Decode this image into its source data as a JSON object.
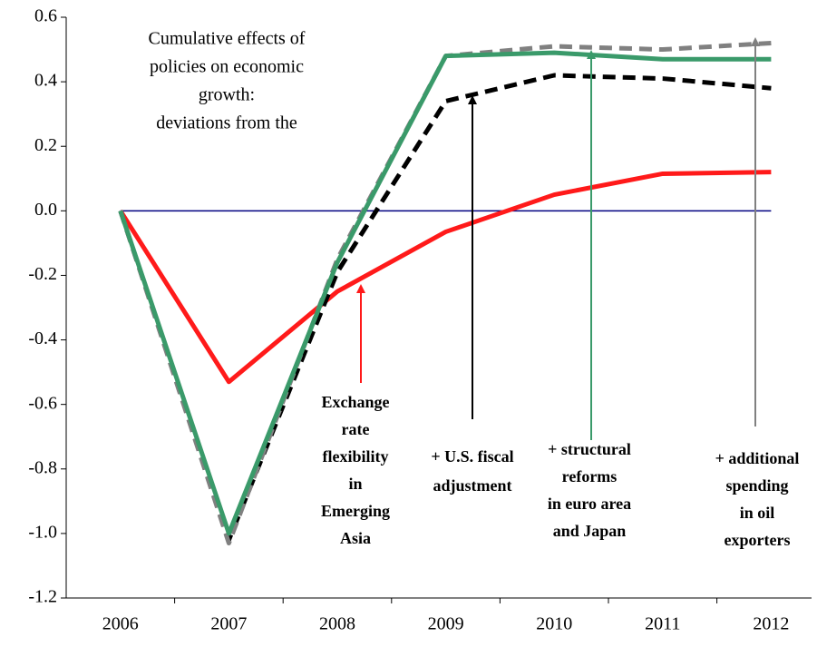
{
  "chart_data": {
    "type": "line",
    "title_lines": [
      "Cumulative effects of",
      "policies on economic",
      "growth:",
      "deviations from the"
    ],
    "categories": [
      "2006",
      "2007",
      "2008",
      "2009",
      "2010",
      "2011",
      "2012"
    ],
    "series": [
      {
        "color": "#ff1a1a",
        "dash": false,
        "values": [
          0,
          -0.53,
          -0.25,
          -0.065,
          0.05,
          0.115,
          0.12
        ]
      },
      {
        "color": "#000000",
        "dash": true,
        "values": [
          0,
          -1.02,
          -0.19,
          0.34,
          0.42,
          0.41,
          0.38
        ]
      },
      {
        "color": "#808080",
        "dash": true,
        "values": [
          0,
          -1.03,
          -0.15,
          0.48,
          0.51,
          0.5,
          0.52
        ]
      },
      {
        "color": "#3a9a6a",
        "dash": false,
        "values": [
          0,
          -1.0,
          -0.16,
          0.48,
          0.49,
          0.47,
          0.47
        ]
      }
    ],
    "ylim": [
      -1.2,
      0.6
    ],
    "yticks": [
      {
        "value": -1.2,
        "label": "-1.2"
      },
      {
        "value": -1,
        "label": "-1.0"
      },
      -0.8,
      -0.6,
      -0.4,
      -0.2,
      {
        "value": 0,
        "label": "0.0"
      },
      0.2,
      0.4,
      0.6
    ],
    "annotations": [
      {
        "color": "#ff1a1a",
        "lines": [
          "Exchange",
          "rate",
          "flexibility",
          "in",
          "Emerging",
          "Asia"
        ]
      },
      {
        "color": "#000000",
        "lines": [
          "+ U.S. fiscal",
          "adjustment"
        ]
      },
      {
        "color": "#3a9a6a",
        "lines": [
          "+ structural",
          "reforms",
          "in euro area",
          "and Japan"
        ]
      },
      {
        "color": "#808080",
        "lines": [
          "+ additional",
          "spending",
          "in oil",
          "exporters"
        ]
      }
    ]
  }
}
